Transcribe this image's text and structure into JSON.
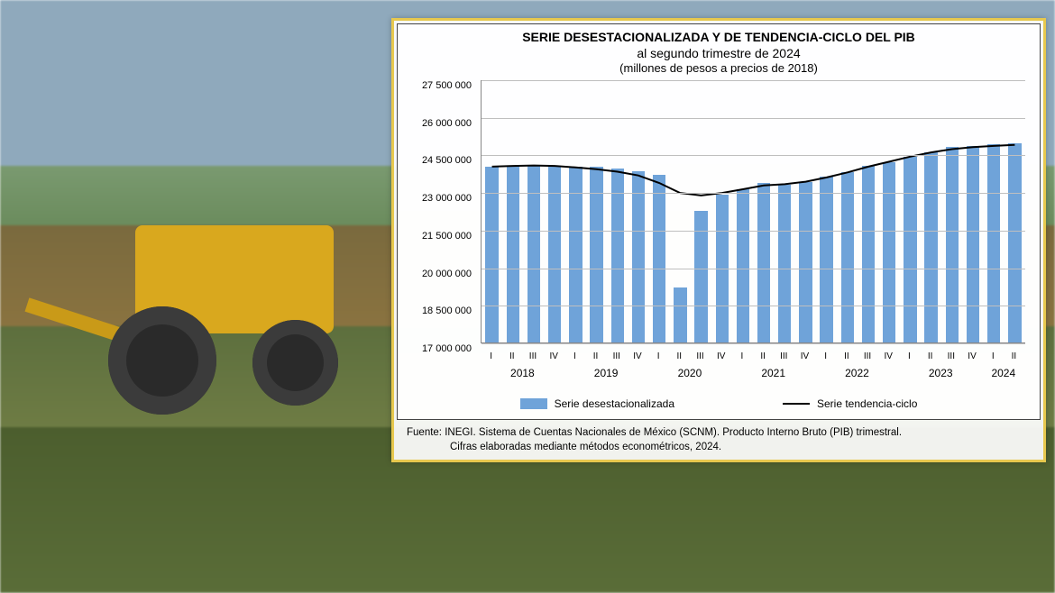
{
  "chart": {
    "type": "bar+line",
    "title": "SERIE DESESTACIONALIZADA Y DE TENDENCIA-CICLO DEL PIB",
    "subtitle": "al segundo trimestre de 2024",
    "units_note": "(millones de pesos a precios de 2018)",
    "background_color": "#ffffff",
    "card_border_color": "#e7c84e",
    "inner_border_color": "#444444",
    "grid_color": "#bfbfbf",
    "axis_color": "#888888",
    "title_fontsize": 14,
    "subtitle_fontsize": 14,
    "note_fontsize": 13,
    "tick_fontsize": 11,
    "year_fontsize": 12,
    "quarter_fontsize": 10,
    "y_axis": {
      "min": 17000000,
      "max": 27500000,
      "tick_step": 1500000,
      "ticks": [
        17000000,
        18500000,
        20000000,
        21500000,
        23000000,
        24500000,
        26000000,
        27500000
      ],
      "tick_labels": [
        "17 000 000",
        "18 500 000",
        "20 000 000",
        "21 500 000",
        "23 000 000",
        "24 500 000",
        "26 000 000",
        "27 500 000"
      ]
    },
    "x_axis": {
      "quarters": [
        "I",
        "II",
        "III",
        "IV",
        "I",
        "II",
        "III",
        "IV",
        "I",
        "II",
        "III",
        "IV",
        "I",
        "II",
        "III",
        "IV",
        "I",
        "II",
        "III",
        "IV",
        "I",
        "II",
        "III",
        "IV",
        "I",
        "II"
      ],
      "year_positions": [
        {
          "label": "2018",
          "center_index": 1.5
        },
        {
          "label": "2019",
          "center_index": 5.5
        },
        {
          "label": "2020",
          "center_index": 9.5
        },
        {
          "label": "2021",
          "center_index": 13.5
        },
        {
          "label": "2022",
          "center_index": 17.5
        },
        {
          "label": "2023",
          "center_index": 21.5
        },
        {
          "label": "2024",
          "center_index": 24.5
        }
      ]
    },
    "bars": {
      "color": "#6fa3d9",
      "width_ratio": 0.62,
      "values": [
        24000000,
        24050000,
        24100000,
        24050000,
        24000000,
        24000000,
        23950000,
        23850000,
        23700000,
        19200000,
        22250000,
        22900000,
        23100000,
        23350000,
        23300000,
        23400000,
        23600000,
        23800000,
        24050000,
        24200000,
        24400000,
        24600000,
        24800000,
        24850000,
        24900000,
        24950000
      ]
    },
    "trend_line": {
      "color": "#000000",
      "width": 2,
      "values": [
        24050000,
        24080000,
        24100000,
        24080000,
        24020000,
        23950000,
        23850000,
        23700000,
        23400000,
        23000000,
        22900000,
        23000000,
        23150000,
        23300000,
        23350000,
        23450000,
        23620000,
        23820000,
        24050000,
        24250000,
        24450000,
        24620000,
        24750000,
        24830000,
        24880000,
        24920000
      ]
    },
    "legend": {
      "bar_label": "Serie desestacionalizada",
      "line_label": "Serie tendencia-ciclo"
    },
    "source_line1": "Fuente: INEGI. Sistema de Cuentas Nacionales de México (SCNM). Producto Interno Bruto (PIB) trimestral.",
    "source_line2": "Cifras elaboradas mediante métodos econométricos, 2024."
  },
  "background": {
    "sky_color": "#8fa9bc",
    "distant_green": "#6b8c5d",
    "soil_color": "#8a7340",
    "crop_green": "#5a6d38",
    "tractor_yellow": "#d9a81e",
    "wheel_color": "#2a2a2a"
  }
}
